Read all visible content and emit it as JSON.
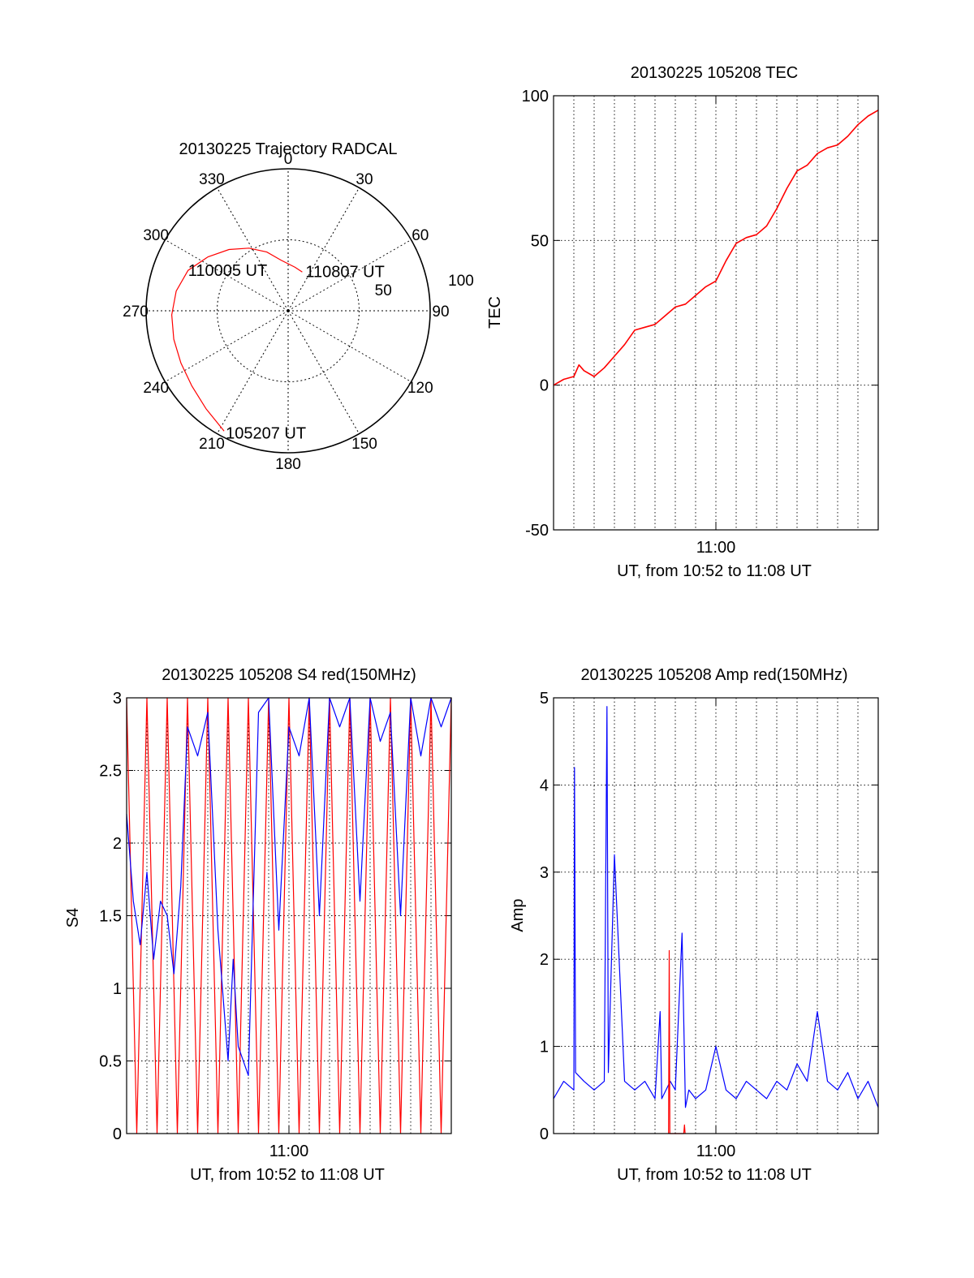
{
  "colors": {
    "red": "#ff0000",
    "blue": "#0000ff",
    "axis": "#000000",
    "grid": "#000000"
  },
  "chart_data": [
    {
      "id": "polar",
      "type": "polar",
      "title": "20130225 Trajectory RADCAL",
      "angle_labels": [
        "0",
        "30",
        "60",
        "90",
        "120",
        "150",
        "180",
        "210",
        "240",
        "270",
        "300",
        "330"
      ],
      "radial_ticks": [
        50,
        100
      ],
      "radial_labels": [
        "50",
        "100"
      ],
      "rmax": 100,
      "grid": "dotted",
      "trajectory": {
        "color": "red",
        "points": [
          {
            "az": 208,
            "r": 96
          },
          {
            "az": 220,
            "r": 90
          },
          {
            "az": 232,
            "r": 86
          },
          {
            "az": 244,
            "r": 84
          },
          {
            "az": 256,
            "r": 83
          },
          {
            "az": 268,
            "r": 82
          },
          {
            "az": 280,
            "r": 80
          },
          {
            "az": 292,
            "r": 76
          },
          {
            "az": 304,
            "r": 68
          },
          {
            "az": 316,
            "r": 60
          },
          {
            "az": 328,
            "r": 52
          },
          {
            "az": 340,
            "r": 44
          },
          {
            "az": 352,
            "r": 36
          },
          {
            "az": 9,
            "r": 31
          },
          {
            "az": 20,
            "r": 29
          }
        ]
      },
      "annotations": [
        {
          "text": "110807 UT",
          "az": 20,
          "r": 29
        },
        {
          "text": "110005 UT",
          "az": 298,
          "r": 28
        },
        {
          "text": "105207 UT",
          "az": 208,
          "r": 96
        }
      ]
    },
    {
      "id": "tec",
      "type": "line",
      "title": "20130225 105208 TEC",
      "xlabel": "UT, from 10:52 to 11:08 UT",
      "ylabel": "TEC",
      "xlim": [
        "10:52",
        "11:08"
      ],
      "ylim": [
        -50,
        100
      ],
      "yticks": [
        -50,
        0,
        50,
        100
      ],
      "xticks": [
        "11:00"
      ],
      "grid": true,
      "series": [
        {
          "color": "red",
          "x": [
            "10:52:00",
            "10:52:30",
            "10:53:00",
            "10:53:15",
            "10:53:30",
            "10:54:00",
            "10:54:30",
            "10:55:00",
            "10:55:30",
            "10:56:00",
            "10:56:30",
            "10:57:00",
            "10:57:30",
            "10:58:00",
            "10:58:30",
            "10:59:00",
            "10:59:30",
            "11:00:00",
            "11:00:30",
            "11:01:00",
            "11:01:30",
            "11:02:00",
            "11:02:30",
            "11:03:00",
            "11:03:30",
            "11:04:00",
            "11:04:30",
            "11:05:00",
            "11:05:30",
            "11:06:00",
            "11:06:30",
            "11:07:00",
            "11:07:30",
            "11:08:00"
          ],
          "values": [
            0,
            2,
            3,
            7,
            5,
            3,
            6,
            10,
            14,
            19,
            20,
            21,
            24,
            27,
            28,
            31,
            34,
            36,
            43,
            49,
            51,
            52,
            55,
            61,
            68,
            74,
            76,
            80,
            82,
            83,
            86,
            90,
            93,
            95
          ]
        }
      ]
    },
    {
      "id": "s4",
      "type": "line",
      "title": "20130225 105208 S4 red(150MHz)",
      "xlabel": "UT, from 10:52 to 11:08 UT",
      "ylabel": "S4",
      "xlim": [
        "10:52",
        "11:08"
      ],
      "ylim": [
        0,
        3
      ],
      "yticks": [
        0,
        0.5,
        1,
        1.5,
        2,
        2.5,
        3
      ],
      "ytick_labels": [
        "0",
        "0.5",
        "1",
        "1.5",
        "2",
        "2.5",
        "3"
      ],
      "xticks": [
        "11:00"
      ],
      "grid": true,
      "series": [
        {
          "color": "red",
          "x": [
            "10:52:00",
            "10:52:30",
            "10:53:00",
            "10:53:30",
            "10:54:00",
            "10:54:30",
            "10:55:00",
            "10:55:30",
            "10:56:00",
            "10:56:30",
            "10:57:00",
            "10:57:30",
            "10:58:00",
            "10:58:30",
            "10:59:00",
            "10:59:30",
            "11:00:00",
            "11:00:30",
            "11:01:00",
            "11:01:30",
            "11:02:00",
            "11:02:30",
            "11:03:00",
            "11:03:30",
            "11:04:00",
            "11:04:30",
            "11:05:00",
            "11:05:30",
            "11:06:00",
            "11:06:30",
            "11:07:00",
            "11:07:30",
            "11:08:00"
          ],
          "values": [
            3,
            0,
            3,
            0,
            3,
            0,
            3,
            0,
            3,
            0,
            3,
            0,
            3,
            0,
            3,
            0,
            3,
            0,
            3,
            0,
            3,
            0,
            3,
            0,
            3,
            0,
            3,
            0,
            3,
            0,
            3,
            0,
            3
          ]
        },
        {
          "color": "blue",
          "x": [
            "10:52:00",
            "10:52:20",
            "10:52:40",
            "10:53:00",
            "10:53:20",
            "10:53:40",
            "10:54:00",
            "10:54:20",
            "10:54:40",
            "10:55:00",
            "10:55:30",
            "10:56:00",
            "10:56:30",
            "10:57:00",
            "10:57:15",
            "10:57:30",
            "10:58:00",
            "10:58:30",
            "10:59:00",
            "10:59:30",
            "11:00:00",
            "11:00:30",
            "11:01:00",
            "11:01:30",
            "11:02:00",
            "11:02:30",
            "11:03:00",
            "11:03:30",
            "11:04:00",
            "11:04:30",
            "11:05:00",
            "11:05:30",
            "11:06:00",
            "11:06:30",
            "11:07:00",
            "11:07:30",
            "11:08:00"
          ],
          "values": [
            2.2,
            1.6,
            1.3,
            1.8,
            1.2,
            1.6,
            1.5,
            1.1,
            1.7,
            2.8,
            2.6,
            2.9,
            1.4,
            0.5,
            1.2,
            0.6,
            0.4,
            2.9,
            3,
            1.4,
            2.8,
            2.6,
            3,
            1.5,
            3,
            2.8,
            3,
            1.6,
            3,
            2.7,
            2.9,
            1.5,
            3,
            2.6,
            3,
            2.8,
            3
          ]
        }
      ]
    },
    {
      "id": "amp",
      "type": "line",
      "title": "20130225 105208 Amp red(150MHz)",
      "xlabel": "UT, from 10:52 to 11:08 UT",
      "ylabel": "Amp",
      "xlim": [
        "10:52",
        "11:08"
      ],
      "ylim": [
        0,
        5
      ],
      "yticks": [
        0,
        1,
        2,
        3,
        4,
        5
      ],
      "xticks": [
        "11:00"
      ],
      "grid": true,
      "series": [
        {
          "color": "blue",
          "x": [
            "10:52:00",
            "10:52:30",
            "10:53:00",
            "10:53:02",
            "10:53:05",
            "10:53:30",
            "10:54:00",
            "10:54:30",
            "10:54:38",
            "10:54:42",
            "10:55:00",
            "10:55:30",
            "10:56:00",
            "10:56:30",
            "10:57:00",
            "10:57:15",
            "10:57:20",
            "10:57:45",
            "10:58:00",
            "10:58:20",
            "10:58:30",
            "10:58:40",
            "10:59:00",
            "10:59:30",
            "11:00:00",
            "11:00:30",
            "11:01:00",
            "11:01:30",
            "11:02:00",
            "11:02:30",
            "11:03:00",
            "11:03:30",
            "11:04:00",
            "11:04:30",
            "11:05:00",
            "11:05:30",
            "11:06:00",
            "11:06:30",
            "11:07:00",
            "11:07:30",
            "11:08:00"
          ],
          "values": [
            0.4,
            0.6,
            0.5,
            4.2,
            0.7,
            0.6,
            0.5,
            0.6,
            4.9,
            0.7,
            3.2,
            0.6,
            0.5,
            0.6,
            0.4,
            1.4,
            0.4,
            0.6,
            0.5,
            2.3,
            0.3,
            0.5,
            0.4,
            0.5,
            1.0,
            0.5,
            0.4,
            0.6,
            0.5,
            0.4,
            0.6,
            0.5,
            0.8,
            0.6,
            1.4,
            0.6,
            0.5,
            0.7,
            0.4,
            0.6,
            0.3
          ]
        },
        {
          "color": "red",
          "x": [
            "10:57:40",
            "10:57:42",
            "10:57:44",
            "10:58:25",
            "10:58:27",
            "10:58:29"
          ],
          "values": [
            0,
            2.1,
            0,
            0,
            0.1,
            0
          ]
        }
      ]
    }
  ]
}
